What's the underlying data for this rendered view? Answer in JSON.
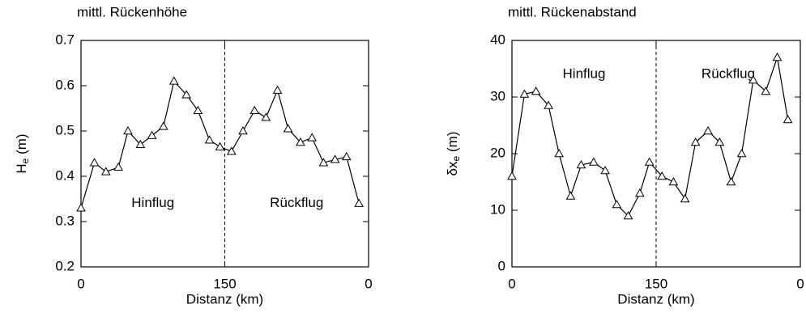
{
  "chart_data": [
    {
      "type": "line",
      "title": "mittl. Rückenhöhe",
      "y_label": {
        "main": "H",
        "sub": "e",
        "unit": " (m)"
      },
      "x_label": "Distanz (km)",
      "annotations": [
        "Hinflug",
        "Rückflug"
      ],
      "x": [
        0,
        14,
        26,
        39,
        49,
        62,
        74,
        86,
        97,
        110,
        122,
        134,
        145,
        157,
        169,
        181,
        193,
        205,
        216,
        229,
        241,
        253,
        265,
        277,
        290
      ],
      "series": [
        {
          "name": "mittl. Rückenhöhe",
          "color": "#000000",
          "values": [
            0.33,
            0.43,
            0.41,
            0.42,
            0.5,
            0.47,
            0.49,
            0.51,
            0.61,
            0.58,
            0.545,
            0.48,
            0.465,
            0.455,
            0.5,
            0.545,
            0.53,
            0.59,
            0.505,
            0.475,
            0.485,
            0.43,
            0.437,
            0.443,
            0.34
          ]
        }
      ],
      "xlim": [
        0,
        300
      ],
      "xticks": [
        0,
        150,
        {
          "value": 300,
          "label": "0"
        }
      ],
      "ylim": [
        0.2,
        0.7
      ],
      "yticks": [
        0.2,
        0.3,
        0.4,
        0.5,
        0.6,
        0.7
      ],
      "turn": 150
    },
    {
      "type": "line",
      "title": "mittl. Rückenabstand",
      "y_label": {
        "main": "δx",
        "sub": "e",
        "unit": " (m)"
      },
      "x_label": "Distanz (km)",
      "annotations": [
        "Hinflug",
        "Rückflug"
      ],
      "x": [
        0,
        13,
        25,
        38,
        49,
        61,
        72,
        85,
        97,
        109,
        121,
        133,
        143,
        156,
        168,
        180,
        191,
        204,
        216,
        228,
        239,
        251,
        264,
        276,
        287
      ],
      "series": [
        {
          "name": "mittl. Rückenabstand",
          "color": "#000000",
          "values": [
            16,
            30.5,
            31,
            28.5,
            20,
            12.5,
            18,
            18.5,
            17,
            11,
            9,
            13,
            18.5,
            16,
            15,
            12,
            22,
            24,
            22,
            15,
            20,
            33,
            31,
            37,
            26
          ]
        }
      ],
      "xlim": [
        0,
        300
      ],
      "xticks": [
        0,
        150,
        {
          "value": 300,
          "label": "0"
        }
      ],
      "ylim": [
        0,
        40
      ],
      "yticks": [
        0,
        10,
        20,
        30,
        40
      ],
      "turn": 150
    }
  ]
}
